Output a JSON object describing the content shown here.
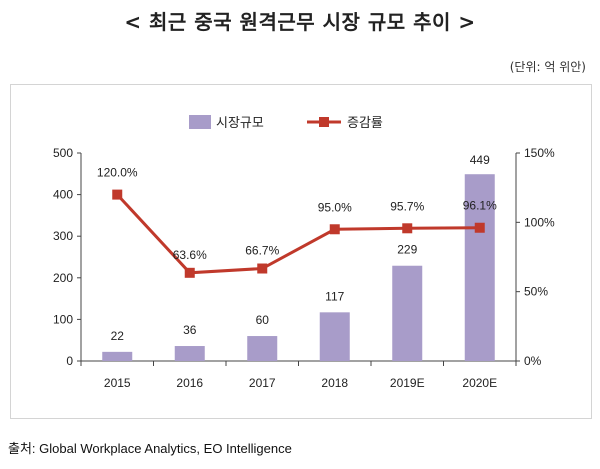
{
  "title": "< 최근 중국 원격근무 시장 규모 추이 >",
  "unit": "(단위: 억 위안)",
  "source": "출처: Global Workplace Analytics, EO Intelligence",
  "colors": {
    "bar": "#a89cc9",
    "line": "#c0392b",
    "axis": "#444444"
  },
  "chart_data": {
    "type": "bar+line",
    "categories": [
      "2015",
      "2016",
      "2017",
      "2018",
      "2019E",
      "2020E"
    ],
    "series": [
      {
        "name": "시장규모",
        "type": "bar",
        "axis": "left",
        "values": [
          22,
          36,
          60,
          117,
          229,
          449
        ]
      },
      {
        "name": "증감률",
        "type": "line",
        "axis": "right",
        "values": [
          120.0,
          63.6,
          66.7,
          95.0,
          95.7,
          96.1
        ]
      }
    ],
    "bar_labels": [
      "22",
      "36",
      "60",
      "117",
      "229",
      "449"
    ],
    "line_labels": [
      "120.0%",
      "63.6%",
      "66.7%",
      "95.0%",
      "95.7%",
      "96.1%"
    ],
    "left_axis": {
      "min": 0,
      "max": 500,
      "ticks": [
        "0",
        "100",
        "200",
        "300",
        "400",
        "500"
      ]
    },
    "right_axis": {
      "min": 0,
      "max": 150,
      "ticks": [
        "0%",
        "50%",
        "100%",
        "150%"
      ]
    },
    "legend": [
      "시장규모",
      "증감률"
    ],
    "legend_position": "top-center"
  }
}
